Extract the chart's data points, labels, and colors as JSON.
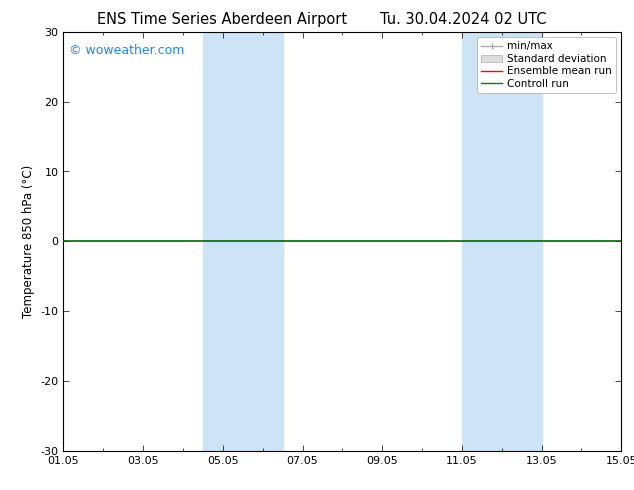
{
  "title_left": "ENS Time Series Aberdeen Airport",
  "title_right": "Tu. 30.04.2024 02 UTC",
  "ylabel": "Temperature 850 hPa (°C)",
  "ylim": [
    -30,
    30
  ],
  "yticks": [
    -30,
    -20,
    -10,
    0,
    10,
    20,
    30
  ],
  "xlim": [
    0,
    14
  ],
  "xtick_labels": [
    "01.05",
    "03.05",
    "05.05",
    "07.05",
    "09.05",
    "11.05",
    "13.05",
    "15.05"
  ],
  "xtick_positions": [
    0,
    2,
    4,
    6,
    8,
    10,
    12,
    14
  ],
  "shaded_bands": [
    {
      "x_start": 3.5,
      "x_end": 5.5,
      "color": "#cce4f5"
    },
    {
      "x_start": 10.0,
      "x_end": 12.0,
      "color": "#cce4f5"
    }
  ],
  "watermark": "© woweather.com",
  "watermark_color": "#2288dd",
  "legend_items": [
    {
      "label": "min/max",
      "color": "#999999",
      "style": "minmax"
    },
    {
      "label": "Standard deviation",
      "color": "#cccccc",
      "style": "rect"
    },
    {
      "label": "Ensemble mean run",
      "color": "red",
      "style": "line"
    },
    {
      "label": "Controll run",
      "color": "green",
      "style": "line"
    }
  ],
  "background_color": "#ffffff",
  "plot_bg_color": "#ffffff",
  "zero_line_color": "#006600",
  "grid_color": "#dddddd",
  "title_fontsize": 10.5,
  "axis_fontsize": 8.5,
  "tick_fontsize": 8,
  "legend_fontsize": 7.5
}
